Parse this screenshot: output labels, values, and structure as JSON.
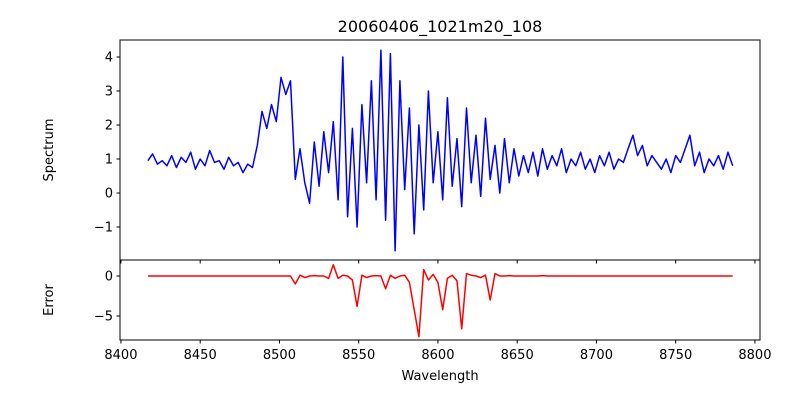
{
  "chart_data": [
    {
      "type": "line",
      "title": "20060406_1021m20_108",
      "xlabel": "",
      "ylabel": "Spectrum",
      "xlim": [
        8399.4,
        8803.2
      ],
      "ylim": [
        -1.97,
        4.5
      ],
      "xticks": [
        8400,
        8450,
        8500,
        8550,
        8600,
        8650,
        8700,
        8750,
        8800
      ],
      "yticks": [
        -1,
        0,
        1,
        2,
        3,
        4
      ],
      "color": "#0000ff",
      "x_start": 8417,
      "x_step": 3,
      "values": [
        0.95,
        1.15,
        0.85,
        0.95,
        0.8,
        1.1,
        0.75,
        1.05,
        0.9,
        1.2,
        0.7,
        1.0,
        0.8,
        1.25,
        0.9,
        0.95,
        0.7,
        1.05,
        0.8,
        0.9,
        0.6,
        0.85,
        0.75,
        1.4,
        2.4,
        1.9,
        2.6,
        2.1,
        3.4,
        2.9,
        3.3,
        0.4,
        1.3,
        0.3,
        -0.3,
        1.5,
        0.2,
        1.8,
        0.6,
        2.1,
        -0.2,
        4.0,
        -0.7,
        1.9,
        -1.0,
        2.6,
        0.3,
        3.3,
        -0.2,
        4.2,
        -0.8,
        4.1,
        -1.7,
        3.3,
        0.1,
        2.5,
        -1.2,
        2.0,
        -0.5,
        3.0,
        0.3,
        1.8,
        -0.2,
        2.8,
        0.2,
        1.6,
        -0.4,
        2.5,
        0.3,
        1.7,
        -0.1,
        2.2,
        0.4,
        1.4,
        0.0,
        1.6,
        0.3,
        1.3,
        0.5,
        1.1,
        0.6,
        1.2,
        0.5,
        1.3,
        0.7,
        1.1,
        0.8,
        1.3,
        0.6,
        1.0,
        0.8,
        1.2,
        0.7,
        1.0,
        0.6,
        1.1,
        0.8,
        1.2,
        0.7,
        1.0,
        0.9,
        1.3,
        1.7,
        1.1,
        1.4,
        0.8,
        1.1,
        0.9,
        0.7,
        1.0,
        0.6,
        1.1,
        0.9,
        1.3,
        1.7,
        0.8,
        1.2,
        0.6,
        1.0,
        0.8,
        1.1,
        0.7,
        1.2,
        0.8
      ]
    },
    {
      "type": "line",
      "title": "",
      "xlabel": "Wavelength",
      "ylabel": "Error",
      "xlim": [
        8399.4,
        8803.2
      ],
      "ylim": [
        -8,
        2
      ],
      "xticks": [
        8400,
        8450,
        8500,
        8550,
        8600,
        8650,
        8700,
        8750,
        8800
      ],
      "yticks": [
        -5,
        0
      ],
      "color": "#ff0000",
      "x_start": 8417,
      "x_step": 3,
      "values": [
        0,
        0,
        0,
        0,
        0,
        0,
        0,
        0,
        0,
        0,
        0,
        0,
        0,
        0,
        0,
        0,
        0,
        0,
        0,
        0,
        0,
        0,
        0,
        0,
        0,
        0,
        0,
        0,
        0,
        0,
        0,
        -1.0,
        0.1,
        -0.2,
        0,
        0.05,
        0,
        0,
        -0.3,
        1.4,
        -0.3,
        0.1,
        0,
        -0.5,
        -3.8,
        0.1,
        -0.2,
        0,
        0.05,
        0,
        -1.6,
        0.1,
        -0.3,
        0,
        0.1,
        -0.8,
        -4.2,
        -7.6,
        0.8,
        -0.5,
        0.2,
        -0.8,
        -4.2,
        -0.3,
        0.1,
        -0.6,
        -6.6,
        0.3,
        0.1,
        0,
        -0.2,
        0.1,
        -3.0,
        0.3,
        0,
        0,
        0.05,
        0,
        0,
        0,
        0,
        0,
        0,
        0.05,
        0,
        0,
        0,
        0,
        0,
        0,
        0,
        0,
        0,
        0,
        0,
        0,
        0,
        0,
        0,
        0,
        0,
        0,
        0,
        0,
        0,
        0,
        0,
        0,
        0,
        0,
        0,
        0,
        0,
        0,
        0,
        0,
        0,
        0,
        0,
        0,
        0,
        0,
        0,
        0
      ]
    }
  ]
}
